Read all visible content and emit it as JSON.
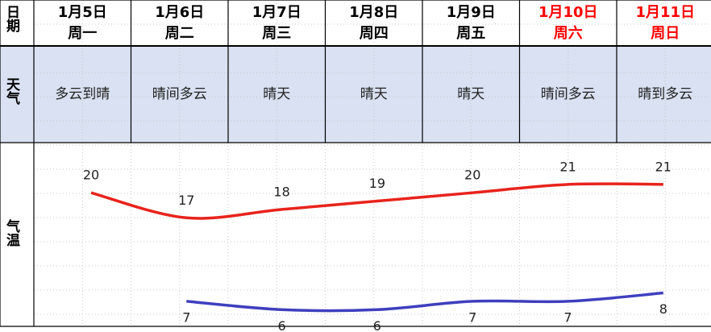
{
  "table": {
    "row_labels": {
      "date": "日期",
      "weather": "天气",
      "temperature": "气温"
    },
    "columns": [
      {
        "date": "1月5日",
        "weekday": "周一",
        "weather": "多云到晴",
        "color": "#000000"
      },
      {
        "date": "1月6日",
        "weekday": "周二",
        "weather": "晴间多云",
        "color": "#000000"
      },
      {
        "date": "1月7日",
        "weekday": "周三",
        "weather": "晴天",
        "color": "#000000"
      },
      {
        "date": "1月8日",
        "weekday": "周四",
        "weather": "晴天",
        "color": "#000000"
      },
      {
        "date": "1月9日",
        "weekday": "周五",
        "weather": "晴天",
        "color": "#000000"
      },
      {
        "date": "1月10日",
        "weekday": "周六",
        "weather": "晴间多云",
        "color": "#ff0000"
      },
      {
        "date": "1月11日",
        "weekday": "周日",
        "weather": "晴到多云",
        "color": "#ff0000"
      }
    ]
  },
  "chart_data": {
    "type": "line",
    "ylim": [
      4,
      26
    ],
    "series": [
      {
        "color": "#e8231c",
        "values": [
          20,
          17,
          18,
          19,
          20,
          21,
          21
        ]
      },
      {
        "color": "#3f3fbf",
        "values": [
          null,
          7,
          6,
          6,
          7,
          7,
          8
        ]
      }
    ]
  }
}
